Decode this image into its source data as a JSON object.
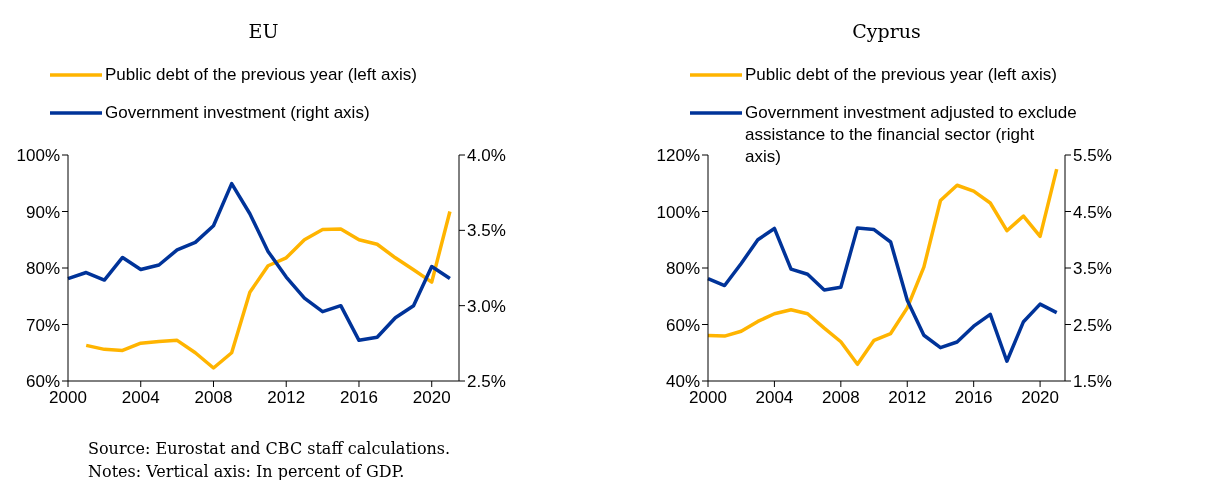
{
  "chart_data": [
    {
      "type": "line",
      "title": "EU",
      "x": [
        2000,
        2001,
        2002,
        2003,
        2004,
        2005,
        2006,
        2007,
        2008,
        2009,
        2010,
        2011,
        2012,
        2013,
        2014,
        2015,
        2016,
        2017,
        2018,
        2019,
        2020,
        2021
      ],
      "series": [
        {
          "name": "Public debt of the previous year (left axis)",
          "color": "#ffb400",
          "values": [
            null,
            66.3,
            65.6,
            65.4,
            66.7,
            67.0,
            67.2,
            65.0,
            62.3,
            65.0,
            75.7,
            80.4,
            81.8,
            85.0,
            86.8,
            86.9,
            85.0,
            84.2,
            81.8,
            79.7,
            77.5,
            90.0
          ]
        },
        {
          "name": "Government investment (right axis)",
          "color": "#003399",
          "axis": "y2",
          "values": [
            3.18,
            3.22,
            3.17,
            3.32,
            3.24,
            3.27,
            3.37,
            3.42,
            3.53,
            3.81,
            3.61,
            3.36,
            3.19,
            3.05,
            2.96,
            3.0,
            2.77,
            2.79,
            2.92,
            3.0,
            3.26,
            3.18
          ]
        }
      ],
      "xlim": [
        2000,
        2021.5
      ],
      "xticks": [
        2000,
        2004,
        2008,
        2012,
        2016,
        2020
      ],
      "ylim": [
        60,
        100
      ],
      "yticks": [
        {
          "value": 60,
          "label": "60%"
        },
        {
          "value": 70,
          "label": "70%"
        },
        {
          "value": 80,
          "label": "80%"
        },
        {
          "value": 90,
          "label": "90%"
        },
        {
          "value": 100,
          "label": "100%"
        }
      ],
      "y2lim": [
        2.5,
        4.0
      ],
      "y2ticks": [
        {
          "value": 2.5,
          "label": "2.5%"
        },
        {
          "value": 3.0,
          "label": "3.0%"
        },
        {
          "value": 3.5,
          "label": "3.5%"
        },
        {
          "value": 4.0,
          "label": "4.0%"
        }
      ],
      "legend": "top",
      "grid": false,
      "line_style": "solid",
      "marker": "none",
      "annotations": [
        "Source: Eurostat and CBC staff calculations.",
        "Notes: Vertical axis: In percent of GDP."
      ]
    },
    {
      "type": "line",
      "title": "Cyprus",
      "x": [
        2000,
        2001,
        2002,
        2003,
        2004,
        2005,
        2006,
        2007,
        2008,
        2009,
        2010,
        2011,
        2012,
        2013,
        2014,
        2015,
        2016,
        2017,
        2018,
        2019,
        2020,
        2021
      ],
      "series": [
        {
          "name": "Public debt of the previous year (left axis)",
          "color": "#ffb400",
          "values": [
            56.1,
            55.9,
            57.6,
            61.1,
            63.8,
            65.2,
            63.8,
            58.7,
            53.9,
            45.9,
            54.4,
            56.8,
            65.9,
            80.3,
            103.9,
            109.3,
            107.2,
            103.0,
            93.2,
            98.4,
            91.2,
            115.0
          ]
        },
        {
          "name": "Government investment adjusted to exclude assistance to the financial sector (right axis)",
          "color": "#003399",
          "axis": "y2",
          "values": [
            3.31,
            3.19,
            3.58,
            4.0,
            4.2,
            3.48,
            3.39,
            3.11,
            3.16,
            4.21,
            4.18,
            3.96,
            2.93,
            2.31,
            2.09,
            2.19,
            2.47,
            2.68,
            1.85,
            2.55,
            2.86,
            2.71
          ]
        }
      ],
      "xlim": [
        2000,
        2021.5
      ],
      "xticks": [
        2000,
        2004,
        2008,
        2012,
        2016,
        2020
      ],
      "ylim": [
        40,
        120
      ],
      "yticks": [
        {
          "value": 40,
          "label": "40%"
        },
        {
          "value": 60,
          "label": "60%"
        },
        {
          "value": 80,
          "label": "80%"
        },
        {
          "value": 100,
          "label": "100%"
        },
        {
          "value": 120,
          "label": "120%"
        }
      ],
      "y2lim": [
        1.5,
        5.5
      ],
      "y2ticks": [
        {
          "value": 1.5,
          "label": "1.5%"
        },
        {
          "value": 2.5,
          "label": "2.5%"
        },
        {
          "value": 3.5,
          "label": "3.5%"
        },
        {
          "value": 4.5,
          "label": "4.5%"
        },
        {
          "value": 5.5,
          "label": "5.5%"
        }
      ],
      "legend": "top",
      "grid": false,
      "line_style": "solid",
      "marker": "none"
    }
  ]
}
